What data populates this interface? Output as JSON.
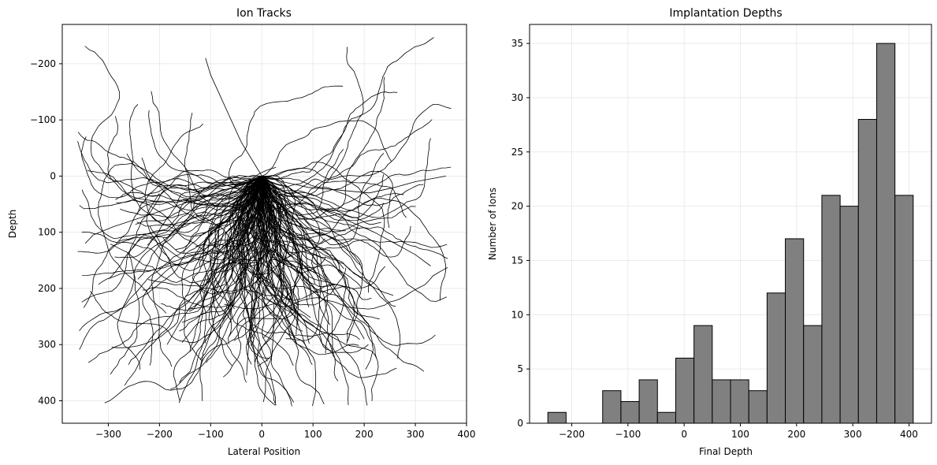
{
  "chart_data": [
    {
      "type": "line",
      "title": "Ion Tracks",
      "xlabel": "Lateral Position",
      "ylabel": "Depth",
      "xlim": [
        -390,
        400
      ],
      "ylim": [
        440,
        -270
      ],
      "y_inverted": true,
      "x_ticks": [
        "−300",
        "−200",
        "−100",
        "0",
        "100",
        "200",
        "300",
        "400"
      ],
      "x_tick_values": [
        -300,
        -200,
        -100,
        0,
        100,
        200,
        300,
        400
      ],
      "y_ticks": [
        "−200",
        "−100",
        "0",
        "100",
        "200",
        "300",
        "400"
      ],
      "y_tick_values": [
        -200,
        -100,
        0,
        100,
        200,
        300,
        400
      ],
      "grid": true,
      "line_color": "#000000",
      "description_origin": [
        0,
        0
      ],
      "representative_tracks": [
        {
          "x": [
            0,
            -3,
            -8,
            -12,
            -15,
            -18,
            -22,
            -25,
            -28,
            -30
          ],
          "y": [
            0,
            40,
            80,
            120,
            160,
            210,
            250,
            290,
            330,
            355
          ]
        },
        {
          "x": [
            0,
            -10,
            -25,
            -45,
            -70,
            -100,
            -130,
            -160,
            -185
          ],
          "y": [
            0,
            30,
            60,
            100,
            140,
            180,
            220,
            260,
            300
          ]
        },
        {
          "x": [
            0,
            15,
            35,
            60,
            90,
            120,
            150,
            175,
            200
          ],
          "y": [
            0,
            30,
            60,
            95,
            130,
            170,
            210,
            250,
            290
          ]
        },
        {
          "x": [
            0,
            30,
            70,
            120,
            170,
            220,
            260,
            300,
            330
          ],
          "y": [
            0,
            20,
            40,
            60,
            80,
            100,
            120,
            140,
            160
          ]
        },
        {
          "x": [
            0,
            -40,
            -90,
            -140,
            -190,
            -240,
            -290,
            -330,
            -345
          ],
          "y": [
            0,
            15,
            30,
            45,
            60,
            75,
            90,
            105,
            120
          ]
        },
        {
          "x": [
            0,
            -20,
            -40,
            -60,
            -80,
            -100,
            -110
          ],
          "y": [
            0,
            -30,
            -60,
            -100,
            -140,
            -180,
            -210
          ]
        },
        {
          "x": [
            0,
            40,
            90,
            150,
            210,
            260,
            300,
            360
          ],
          "y": [
            0,
            10,
            20,
            25,
            30,
            20,
            10,
            0
          ]
        }
      ],
      "ion_count": 200
    },
    {
      "type": "bar",
      "title": "Implantation Depths",
      "xlabel": "Final Depth",
      "ylabel": "Number of Ions",
      "bin_edges": [
        -242.5,
        -210,
        -177.5,
        -145,
        -112.5,
        -80,
        -47.5,
        -15,
        17.5,
        50,
        82.5,
        115,
        147.5,
        180,
        212.5,
        245,
        277.5,
        310,
        342.5,
        375,
        407.5
      ],
      "values": [
        1,
        0,
        0,
        3,
        2,
        4,
        1,
        6,
        9,
        4,
        4,
        3,
        12,
        17,
        9,
        21,
        20,
        28,
        35,
        21
      ],
      "xlim": [
        -275,
        440
      ],
      "ylim": [
        0,
        36.75
      ],
      "x_ticks": [
        "−200",
        "−100",
        "0",
        "100",
        "200",
        "300",
        "400"
      ],
      "x_tick_values": [
        -200,
        -100,
        0,
        100,
        200,
        300,
        400
      ],
      "y_ticks": [
        "0",
        "5",
        "10",
        "15",
        "20",
        "25",
        "30",
        "35"
      ],
      "y_tick_values": [
        0,
        5,
        10,
        15,
        20,
        25,
        30,
        35
      ],
      "grid": true,
      "bar_color": "#808080",
      "edge_color": "#000000"
    }
  ]
}
